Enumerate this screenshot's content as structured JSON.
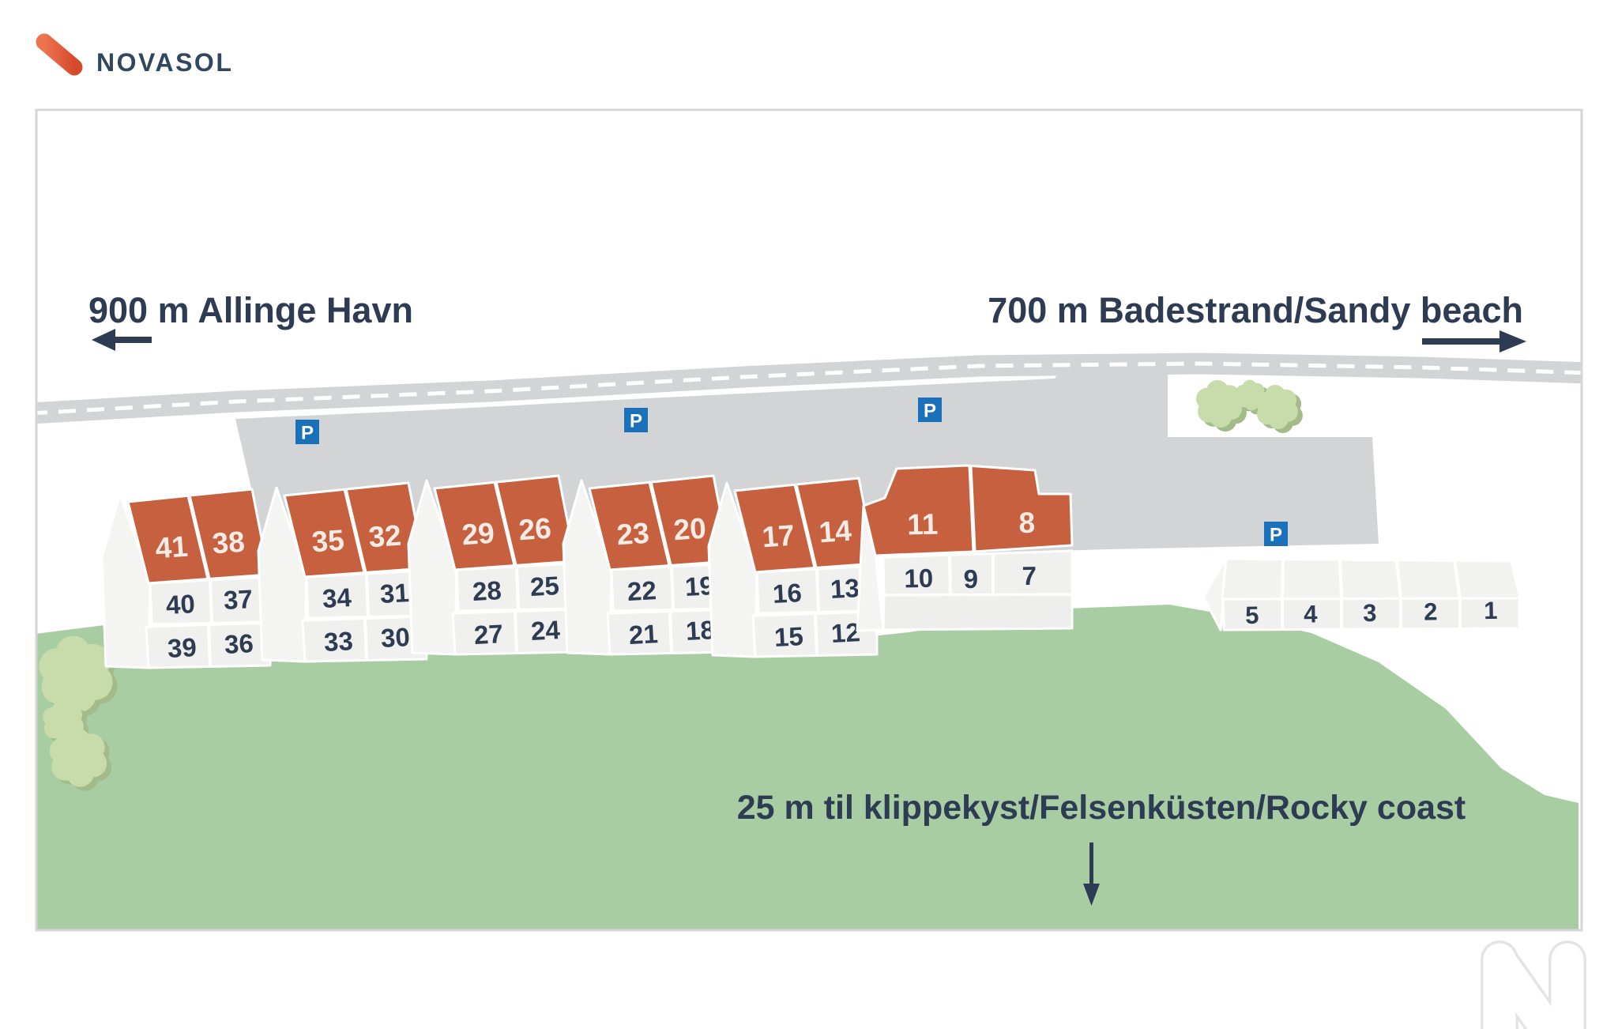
{
  "logo": {
    "text": "NOVASOL"
  },
  "labels": {
    "left_distance": "900 m Allinge Havn",
    "right_distance": "700 m Badestrand/Sandy beach",
    "coast_distance": "25 m til klippekyst/Felsenküsten/Rocky coast",
    "parking_sign": "P"
  },
  "buildings": {
    "standard_blocks": [
      {
        "roof": [
          "41",
          "38"
        ],
        "middle": [
          "40",
          "37"
        ],
        "lower": [
          "39",
          "36"
        ]
      },
      {
        "roof": [
          "35",
          "32"
        ],
        "middle": [
          "34",
          "31"
        ],
        "lower": [
          "33",
          "30"
        ]
      },
      {
        "roof": [
          "29",
          "26"
        ],
        "middle": [
          "28",
          "25"
        ],
        "lower": [
          "27",
          "24"
        ]
      },
      {
        "roof": [
          "23",
          "20"
        ],
        "middle": [
          "22",
          "19"
        ],
        "lower": [
          "21",
          "18"
        ]
      },
      {
        "roof": [
          "17",
          "14"
        ],
        "middle": [
          "16",
          "13"
        ],
        "lower": [
          "15",
          "12"
        ]
      }
    ],
    "large_block": {
      "roof": [
        "11",
        "8"
      ],
      "front": [
        "10",
        "9",
        "7"
      ]
    },
    "terrace_row": [
      "5",
      "4",
      "3",
      "2",
      "1"
    ]
  },
  "colors": {
    "navy": "#2d3c52",
    "roof_orange": "#c6603f",
    "roof_number": "#f7ece5",
    "grass": "#a8cda2",
    "tree_fill": "#c8dcab",
    "tree_shadow": "#a2bb89",
    "road_gray": "#d2d4d5",
    "cell_fill": "#f0f0ee",
    "gable_fill": "#f4f4f2",
    "blank_fill": "#eeeeec",
    "terrace_roof": "#f2f2f0",
    "parking_blue": "#1b70ba",
    "border_gray": "#d6d6d6",
    "watermark_gray": "#e4e4e4",
    "logo_orange_a": "#ee7450",
    "logo_orange_b": "#d54a2c",
    "logo_text": "#31475e",
    "white": "#ffffff"
  }
}
